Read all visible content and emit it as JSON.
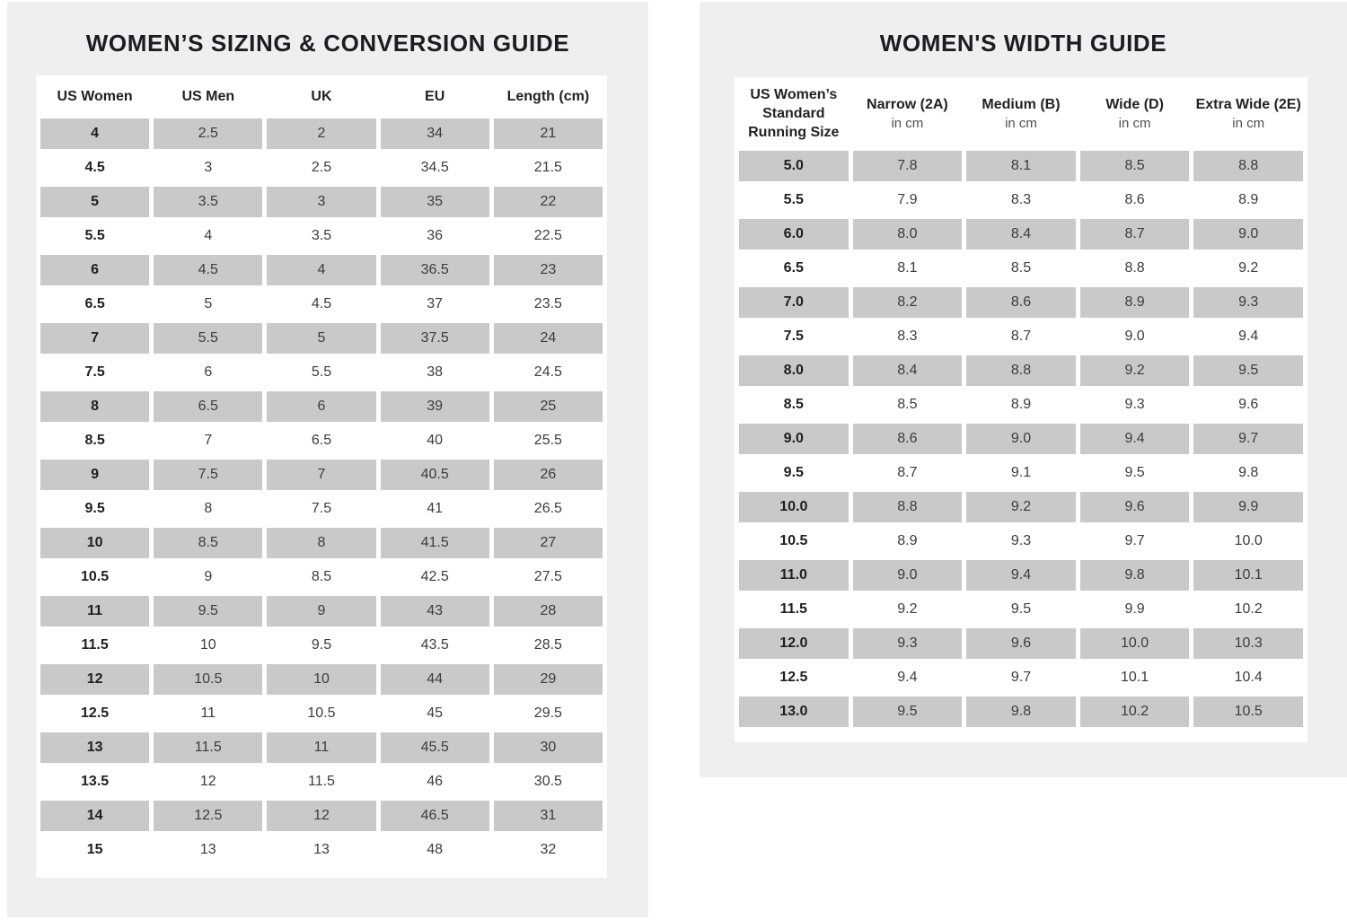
{
  "left_panel": {
    "title": "WOMEN’S SIZING & CONVERSION GUIDE",
    "table": {
      "headers": [
        "US Women",
        "US Men",
        "UK",
        "EU",
        "Length (cm)"
      ],
      "rows": [
        [
          "4",
          "2.5",
          "2",
          "34",
          "21"
        ],
        [
          "4.5",
          "3",
          "2.5",
          "34.5",
          "21.5"
        ],
        [
          "5",
          "3.5",
          "3",
          "35",
          "22"
        ],
        [
          "5.5",
          "4",
          "3.5",
          "36",
          "22.5"
        ],
        [
          "6",
          "4.5",
          "4",
          "36.5",
          "23"
        ],
        [
          "6.5",
          "5",
          "4.5",
          "37",
          "23.5"
        ],
        [
          "7",
          "5.5",
          "5",
          "37.5",
          "24"
        ],
        [
          "7.5",
          "6",
          "5.5",
          "38",
          "24.5"
        ],
        [
          "8",
          "6.5",
          "6",
          "39",
          "25"
        ],
        [
          "8.5",
          "7",
          "6.5",
          "40",
          "25.5"
        ],
        [
          "9",
          "7.5",
          "7",
          "40.5",
          "26"
        ],
        [
          "9.5",
          "8",
          "7.5",
          "41",
          "26.5"
        ],
        [
          "10",
          "8.5",
          "8",
          "41.5",
          "27"
        ],
        [
          "10.5",
          "9",
          "8.5",
          "42.5",
          "27.5"
        ],
        [
          "11",
          "9.5",
          "9",
          "43",
          "28"
        ],
        [
          "11.5",
          "10",
          "9.5",
          "43.5",
          "28.5"
        ],
        [
          "12",
          "10.5",
          "10",
          "44",
          "29"
        ],
        [
          "12.5",
          "11",
          "10.5",
          "45",
          "29.5"
        ],
        [
          "13",
          "11.5",
          "11",
          "45.5",
          "30"
        ],
        [
          "13.5",
          "12",
          "11.5",
          "46",
          "30.5"
        ],
        [
          "14",
          "12.5",
          "12",
          "46.5",
          "31"
        ],
        [
          "15",
          "13",
          "13",
          "48",
          "32"
        ]
      ]
    }
  },
  "right_panel": {
    "title": "WOMEN'S WIDTH GUIDE",
    "table": {
      "headers": [
        {
          "label": "US Women’s Standard Running Size",
          "sub": ""
        },
        {
          "label": "Narrow (2A)",
          "sub": "in cm"
        },
        {
          "label": "Medium (B)",
          "sub": "in cm"
        },
        {
          "label": "Wide (D)",
          "sub": "in cm"
        },
        {
          "label": "Extra Wide (2E)",
          "sub": "in cm"
        }
      ],
      "rows": [
        [
          "5.0",
          "7.8",
          "8.1",
          "8.5",
          "8.8"
        ],
        [
          "5.5",
          "7.9",
          "8.3",
          "8.6",
          "8.9"
        ],
        [
          "6.0",
          "8.0",
          "8.4",
          "8.7",
          "9.0"
        ],
        [
          "6.5",
          "8.1",
          "8.5",
          "8.8",
          "9.2"
        ],
        [
          "7.0",
          "8.2",
          "8.6",
          "8.9",
          "9.3"
        ],
        [
          "7.5",
          "8.3",
          "8.7",
          "9.0",
          "9.4"
        ],
        [
          "8.0",
          "8.4",
          "8.8",
          "9.2",
          "9.5"
        ],
        [
          "8.5",
          "8.5",
          "8.9",
          "9.3",
          "9.6"
        ],
        [
          "9.0",
          "8.6",
          "9.0",
          "9.4",
          "9.7"
        ],
        [
          "9.5",
          "8.7",
          "9.1",
          "9.5",
          "9.8"
        ],
        [
          "10.0",
          "8.8",
          "9.2",
          "9.6",
          "9.9"
        ],
        [
          "10.5",
          "8.9",
          "9.3",
          "9.7",
          "10.0"
        ],
        [
          "11.0",
          "9.0",
          "9.4",
          "9.8",
          "10.1"
        ],
        [
          "11.5",
          "9.2",
          "9.5",
          "9.9",
          "10.2"
        ],
        [
          "12.0",
          "9.3",
          "9.6",
          "10.0",
          "10.3"
        ],
        [
          "12.5",
          "9.4",
          "9.7",
          "10.1",
          "10.4"
        ],
        [
          "13.0",
          "9.5",
          "9.8",
          "10.2",
          "10.5"
        ]
      ]
    }
  },
  "colors": {
    "panel_bg": "#efefef",
    "card_bg": "#ffffff",
    "shaded_row": "#c9c9c9",
    "title_text": "#1d1d1f",
    "cell_text": "#3c3c3c"
  }
}
